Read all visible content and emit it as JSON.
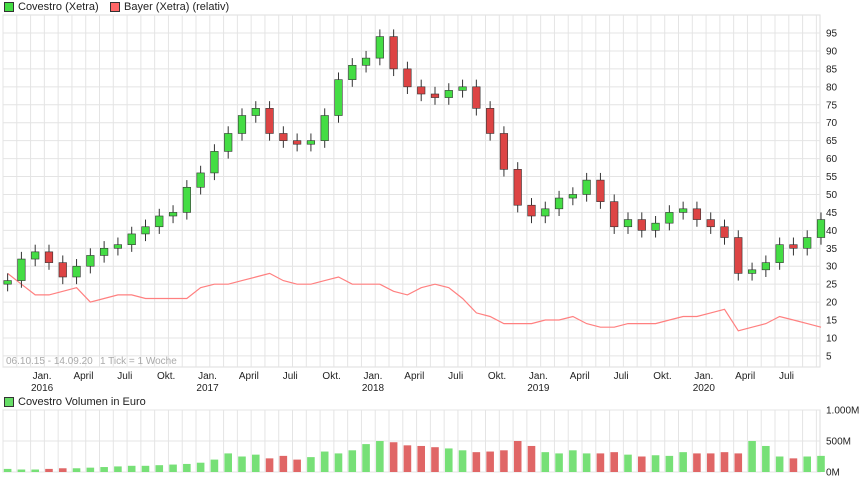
{
  "chart_data": [
    {
      "type": "candlestick-line",
      "legend": [
        {
          "name": "Covestro (Xetra)",
          "color": "#44dd44"
        },
        {
          "name": "Bayer (Xetra) (relativ)",
          "color": "#ff6666"
        }
      ],
      "range_label": "06.10.15 - 14.09.20",
      "tick_label": "1 Tick = 1 Woche",
      "x_labels": [
        {
          "label": "Jan.",
          "year": "2016",
          "date": "2016-01"
        },
        {
          "label": "April",
          "date": "2016-04"
        },
        {
          "label": "Juli",
          "date": "2016-07"
        },
        {
          "label": "Okt.",
          "date": "2016-10"
        },
        {
          "label": "Jan.",
          "year": "2017",
          "date": "2017-01"
        },
        {
          "label": "April",
          "date": "2017-04"
        },
        {
          "label": "Juli",
          "date": "2017-07"
        },
        {
          "label": "Okt.",
          "date": "2017-10"
        },
        {
          "label": "Jan.",
          "year": "2018",
          "date": "2018-01"
        },
        {
          "label": "April",
          "date": "2018-04"
        },
        {
          "label": "Juli",
          "date": "2018-07"
        },
        {
          "label": "Okt.",
          "date": "2018-10"
        },
        {
          "label": "Jan.",
          "year": "2019",
          "date": "2019-01"
        },
        {
          "label": "April",
          "date": "2019-04"
        },
        {
          "label": "Juli",
          "date": "2019-07"
        },
        {
          "label": "Okt.",
          "date": "2019-10"
        },
        {
          "label": "Jan.",
          "year": "2020",
          "date": "2020-01"
        },
        {
          "label": "April",
          "date": "2020-04"
        },
        {
          "label": "Juli",
          "date": "2020-07"
        }
      ],
      "y_ticks": [
        10,
        15,
        20,
        25,
        30,
        35,
        40,
        45,
        50,
        55,
        60,
        65,
        70,
        75,
        80,
        85,
        90,
        95
      ],
      "y_tick_extra": 5,
      "ylim": [
        2,
        100
      ],
      "grid": true,
      "months": [
        "2015-10",
        "2015-11",
        "2015-12",
        "2016-01",
        "2016-02",
        "2016-03",
        "2016-04",
        "2016-05",
        "2016-06",
        "2016-07",
        "2016-08",
        "2016-09",
        "2016-10",
        "2016-11",
        "2016-12",
        "2017-01",
        "2017-02",
        "2017-03",
        "2017-04",
        "2017-05",
        "2017-06",
        "2017-07",
        "2017-08",
        "2017-09",
        "2017-10",
        "2017-11",
        "2017-12",
        "2018-01",
        "2018-02",
        "2018-03",
        "2018-04",
        "2018-05",
        "2018-06",
        "2018-07",
        "2018-08",
        "2018-09",
        "2018-10",
        "2018-11",
        "2018-12",
        "2019-01",
        "2019-02",
        "2019-03",
        "2019-04",
        "2019-05",
        "2019-06",
        "2019-07",
        "2019-08",
        "2019-09",
        "2019-10",
        "2019-11",
        "2019-12",
        "2020-01",
        "2020-02",
        "2020-03",
        "2020-04",
        "2020-05",
        "2020-06",
        "2020-07",
        "2020-08",
        "2020-09"
      ],
      "covestro": [
        26,
        32,
        34,
        31,
        27,
        30,
        33,
        35,
        36,
        39,
        41,
        44,
        45,
        52,
        56,
        62,
        67,
        72,
        74,
        67,
        65,
        64,
        65,
        72,
        82,
        86,
        88,
        94,
        85,
        80,
        78,
        77,
        79,
        80,
        74,
        67,
        57,
        47,
        44,
        46,
        49,
        50,
        54,
        48,
        41,
        43,
        40,
        42,
        45,
        46,
        43,
        41,
        38,
        28,
        29,
        31,
        36,
        35,
        38,
        43
      ],
      "bayer_relative": [
        28,
        25,
        22,
        22,
        23,
        24,
        20,
        21,
        22,
        22,
        21,
        21,
        21,
        21,
        24,
        25,
        25,
        26,
        27,
        28,
        26,
        25,
        25,
        26,
        27,
        25,
        25,
        25,
        23,
        22,
        24,
        25,
        24,
        21,
        17,
        16,
        14,
        14,
        14,
        15,
        15,
        16,
        14,
        13,
        13,
        14,
        14,
        14,
        15,
        16,
        16,
        17,
        18,
        12,
        13,
        14,
        16,
        15,
        14,
        13
      ]
    },
    {
      "type": "bar",
      "title": "Covestro Volumen in Euro",
      "y_labels": [
        "0M",
        "500M",
        "1.000M"
      ],
      "ylim": [
        0,
        1000
      ],
      "values": [
        50,
        40,
        40,
        50,
        60,
        60,
        70,
        80,
        90,
        100,
        100,
        110,
        120,
        130,
        150,
        200,
        300,
        250,
        280,
        220,
        260,
        200,
        240,
        330,
        300,
        350,
        450,
        500,
        480,
        430,
        420,
        400,
        380,
        350,
        320,
        330,
        350,
        500,
        420,
        320,
        300,
        350,
        300,
        300,
        320,
        280,
        250,
        270,
        260,
        320,
        300,
        300,
        320,
        300,
        500,
        420,
        250,
        220,
        250,
        260
      ]
    }
  ]
}
